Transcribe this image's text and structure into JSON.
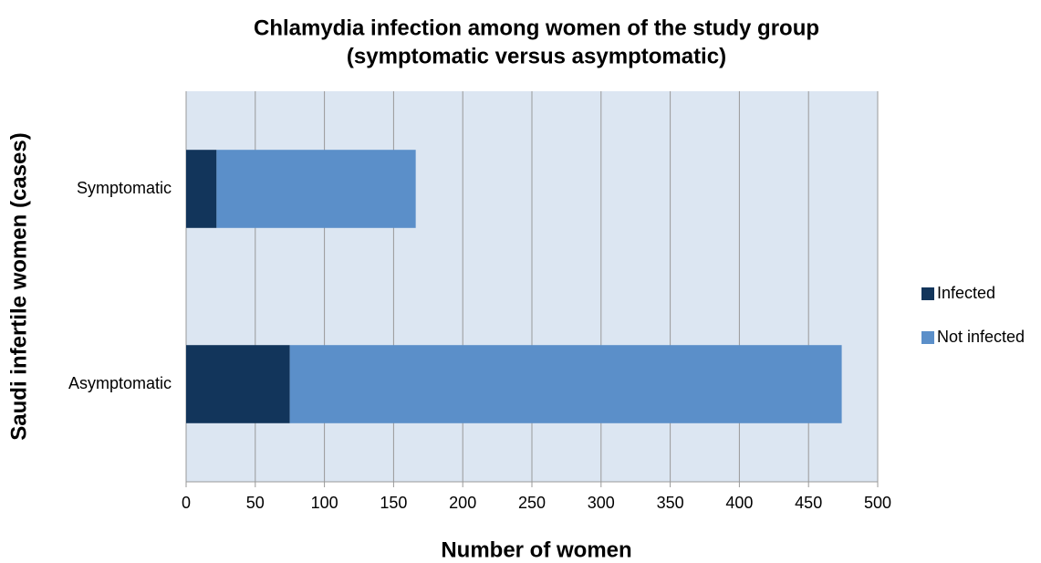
{
  "chart_data": {
    "type": "stacked-bar-horizontal",
    "title": [
      "Chlamydia infection among women of the study group",
      "(symptomatic versus asymptomatic)"
    ],
    "x_label": "Number of women",
    "y_label": "Saudi infertile women (cases)",
    "categories": [
      "Symptomatic",
      "Asymptomatic"
    ],
    "series": [
      {
        "name": "Infected",
        "color": "#12355b",
        "values": [
          22,
          75
        ]
      },
      {
        "name": "Not infected",
        "color": "#5b8fc9",
        "values": [
          144,
          399
        ]
      }
    ],
    "xlim": [
      0,
      500
    ],
    "xticks": [
      0,
      50,
      100,
      150,
      200,
      250,
      300,
      350,
      400,
      450,
      500
    ],
    "grid": true,
    "legend": "right"
  }
}
